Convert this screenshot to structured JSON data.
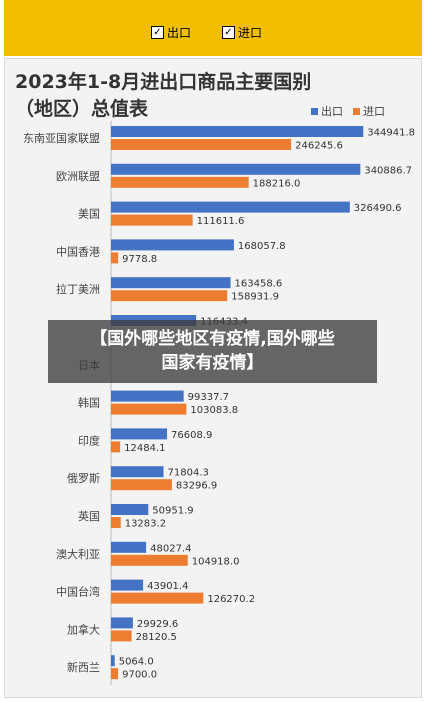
{
  "filters": [
    {
      "label": "出口",
      "checked": true
    },
    {
      "label": "进口",
      "checked": true
    }
  ],
  "banner": {
    "line1": "【国外哪些地区有疫情,国外哪些",
    "line2": "国家有疫情】"
  },
  "colors": {
    "export": "#4472c4",
    "import": "#ed7d31",
    "topbar": "#f2bf00"
  },
  "chart_data": {
    "type": "bar",
    "orientation": "horizontal",
    "title": "2023年1-8月进出口商品主要国别（地区）总值表",
    "legend_position": "top-right",
    "grid": false,
    "categories": [
      "东南亚国家联盟",
      "欧洲联盟",
      "美国",
      "中国香港",
      "拉丁美洲",
      "",
      "日本",
      "韩国",
      "印度",
      "俄罗斯",
      "英国",
      "澳大利亚",
      "中国台湾",
      "加拿大",
      "新西兰"
    ],
    "series": [
      {
        "name": "出口",
        "values": [
          344941.8,
          340886.7,
          326490.6,
          168057.8,
          163458.6,
          116433.4,
          null,
          99337.7,
          76608.9,
          71804.3,
          50951.9,
          48027.4,
          43901.4,
          29929.6,
          5064.0
        ]
      },
      {
        "name": "进口",
        "values": [
          246245.6,
          188216.0,
          111611.6,
          9778.8,
          158931.9,
          null,
          null,
          103083.8,
          12484.1,
          83296.9,
          13283.2,
          104918.0,
          126270.2,
          28120.5,
          9700.0
        ]
      }
    ],
    "labels": {
      "出口": [
        "344941.8",
        "340886.7",
        "326490.6",
        "168057.8",
        "163458.6",
        "116433.4",
        "",
        "99337.7",
        "76608.9",
        "71804.3",
        "50951.9",
        "48027.4",
        "43901.4",
        "29929.6",
        "5064.0"
      ],
      "进口": [
        "246245.6",
        "188216.0",
        "111611.6",
        "9778.8",
        "158931.9",
        "",
        "",
        "103083.8",
        "12484.1",
        "83296.9",
        "13283.2",
        "104918.0",
        "126270.2",
        "28120.5",
        "9700.0"
      ]
    },
    "xlim": [
      0,
      350000
    ]
  }
}
